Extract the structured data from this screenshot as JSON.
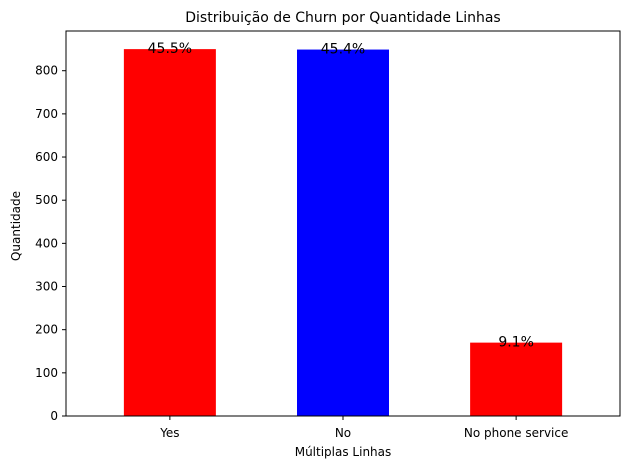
{
  "chart_data": {
    "type": "bar",
    "title": "Distribuição de Churn por Quantidade Linhas",
    "xlabel": "Múltiplas Linhas",
    "ylabel": "Quantidade",
    "categories": [
      "Yes",
      "No",
      "No phone service"
    ],
    "values": [
      850,
      849,
      170
    ],
    "data_labels": [
      "45.5%",
      "45.4%",
      "9.1%"
    ],
    "colors": [
      "#ff0000",
      "#0000ff",
      "#ff0000"
    ],
    "ylim": [
      0,
      892
    ],
    "yticks": [
      0,
      100,
      200,
      300,
      400,
      500,
      600,
      700,
      800
    ],
    "grid": false,
    "legend": "none"
  }
}
